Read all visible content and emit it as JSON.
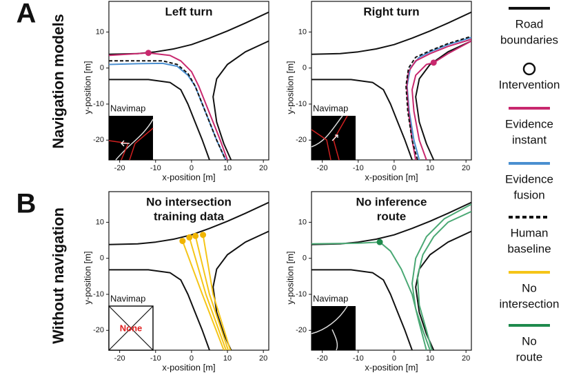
{
  "panel_labels": [
    "A",
    "B"
  ],
  "row_labels": [
    "Navigation models",
    "Without navigation"
  ],
  "legend": [
    {
      "label": [
        "Road",
        "boundaries"
      ],
      "color": "#111111",
      "marker": "line"
    },
    {
      "label": [
        "Intervention"
      ],
      "color": "#111111",
      "marker": "circle"
    },
    {
      "label": [
        "Evidence",
        "instant"
      ],
      "color": "#c8286e",
      "marker": "line"
    },
    {
      "label": [
        "Evidence",
        "fusion"
      ],
      "color": "#4a8fd0",
      "marker": "line"
    },
    {
      "label": [
        "Human",
        "baseline"
      ],
      "color": "#111111",
      "marker": "dashed"
    },
    {
      "label": [
        "No",
        "intersection"
      ],
      "color": "#f5c518",
      "marker": "line"
    },
    {
      "label": [
        "No",
        "route"
      ],
      "color": "#1e8a4c",
      "marker": "line"
    }
  ],
  "chart_data": [
    {
      "type": "line",
      "title": [
        "Left turn"
      ],
      "x_label": "x-position  [m]",
      "y_label": "y-position  [m]",
      "inset_label": "Navimap",
      "xlim": [
        -23,
        21.5
      ],
      "ylim": [
        -25.5,
        18.5
      ],
      "xticks": [
        -20,
        -10,
        0,
        10,
        20
      ],
      "yticks": [
        10,
        0,
        -10,
        -20
      ],
      "series": [
        {
          "name": "Road boundaries",
          "color": "#111111",
          "x": [
            -23,
            -15,
            -10,
            -5,
            0,
            5,
            10,
            15,
            21.5
          ],
          "values": [
            3.8,
            4,
            4.5,
            5.3,
            6.5,
            8.3,
            10.3,
            12.5,
            15.5
          ]
        },
        {
          "name": "Road boundaries",
          "color": "#111111",
          "x": [
            21.5,
            15,
            10,
            7,
            6,
            7,
            9,
            11
          ],
          "values": [
            7.5,
            4.5,
            1,
            -3,
            -8,
            -15,
            -21,
            -25.5
          ]
        },
        {
          "name": "Road boundaries",
          "color": "#111111",
          "x": [
            -23,
            -12,
            -6,
            -3,
            -1,
            1,
            3,
            5
          ],
          "values": [
            -3.2,
            -3.2,
            -4,
            -6,
            -10,
            -15,
            -20,
            -25.5
          ]
        },
        {
          "name": "Evidence fusion",
          "color": "#4a8fd0",
          "x": [
            -23,
            -15,
            -8,
            -4,
            -1,
            1,
            3,
            5,
            7,
            9.5
          ],
          "values": [
            1,
            1.2,
            1.3,
            0.5,
            -2,
            -5,
            -10,
            -15,
            -20,
            -25.5
          ]
        },
        {
          "name": "Evidence instant",
          "color": "#c8286e",
          "x": [
            -23,
            -12,
            -6,
            -3,
            0,
            2,
            4,
            6,
            8,
            10
          ],
          "values": [
            3.5,
            4.2,
            3.5,
            2,
            -1,
            -5,
            -10,
            -15,
            -20,
            -25.5
          ]
        },
        {
          "name": "Human baseline",
          "color": "#111111",
          "style": "dashed",
          "x": [
            -23,
            -15,
            -8,
            -4,
            -1,
            1,
            3,
            5,
            7,
            9.5
          ],
          "values": [
            2,
            2,
            2,
            1,
            -1.5,
            -5,
            -10,
            -15,
            -20,
            -25.5
          ]
        }
      ],
      "points": {
        "name": "Intervention",
        "color": "#c8286e",
        "x": [
          -12
        ],
        "values": [
          4.2
        ]
      }
    },
    {
      "type": "line",
      "title": [
        "Right turn"
      ],
      "x_label": "x-position  [m]",
      "y_label": "y-position  [m]",
      "inset_label": "Navimap",
      "xlim": [
        -23,
        21.5
      ],
      "ylim": [
        -25.5,
        18.5
      ],
      "xticks": [
        -20,
        -10,
        0,
        10,
        20
      ],
      "yticks": [
        10,
        0,
        -10,
        -20
      ],
      "series": [
        {
          "name": "Road boundaries",
          "color": "#111111",
          "x": [
            -23,
            -15,
            -10,
            -5,
            0,
            5,
            10,
            15,
            21.5
          ],
          "values": [
            3.8,
            4,
            4.5,
            5.3,
            6.5,
            8.3,
            10.3,
            12.5,
            15.5
          ]
        },
        {
          "name": "Road boundaries",
          "color": "#111111",
          "x": [
            21.5,
            15,
            10,
            7,
            6,
            7,
            9,
            11
          ],
          "values": [
            7.5,
            4.5,
            1,
            -3,
            -8,
            -15,
            -21,
            -25.5
          ]
        },
        {
          "name": "Road boundaries",
          "color": "#111111",
          "x": [
            -23,
            -12,
            -6,
            -3,
            -1,
            1,
            3,
            5
          ],
          "values": [
            -3.2,
            -3.2,
            -4,
            -6,
            -10,
            -15,
            -20,
            -25.5
          ]
        },
        {
          "name": "Evidence fusion",
          "color": "#4a8fd0",
          "x": [
            7,
            5.5,
            4.2,
            3.6,
            4.5,
            7,
            10,
            15,
            21.5
          ],
          "values": [
            -25.5,
            -20,
            -12,
            -5,
            0,
            3,
            4.5,
            6.5,
            8.5
          ]
        },
        {
          "name": "Evidence instant",
          "color": "#c8286e",
          "x": [
            9,
            7,
            5.5,
            5,
            6,
            9,
            11,
            15,
            21.5
          ],
          "values": [
            -25.5,
            -20,
            -12,
            -6,
            -2,
            1,
            1.5,
            4,
            7.5
          ]
        },
        {
          "name": "Evidence instant",
          "color": "#c8286e",
          "x": [
            6,
            5,
            4,
            3.5,
            4,
            6,
            10,
            15,
            21.5
          ],
          "values": [
            -25.5,
            -20,
            -12,
            -5,
            -1,
            2,
            4,
            6,
            8
          ]
        },
        {
          "name": "Human baseline",
          "color": "#111111",
          "style": "dashed",
          "x": [
            6.5,
            5,
            3.8,
            3.3,
            4,
            6,
            10,
            15,
            21.5
          ],
          "values": [
            -25.5,
            -20,
            -12,
            -5,
            0,
            3,
            4.8,
            6.8,
            8.8
          ]
        }
      ],
      "points": {
        "name": "Intervention",
        "color": "#c8286e",
        "x": [
          11
        ],
        "values": [
          1.5
        ]
      }
    },
    {
      "type": "line",
      "title": [
        "No intersection",
        "training data"
      ],
      "x_label": "x-position  [m]",
      "y_label": "y-position  [m]",
      "inset_label": "Navimap",
      "inset_text": "None",
      "xlim": [
        -23,
        21.5
      ],
      "ylim": [
        -25.5,
        18.5
      ],
      "xticks": [
        -20,
        -10,
        0,
        10,
        20
      ],
      "yticks": [
        10,
        0,
        -10,
        -20
      ],
      "series": [
        {
          "name": "Road boundaries",
          "color": "#111111",
          "x": [
            -23,
            -15,
            -10,
            -5,
            0,
            5,
            10,
            15,
            21.5
          ],
          "values": [
            3.8,
            4,
            4.5,
            5.3,
            6.5,
            8.3,
            10.3,
            12.5,
            15.5
          ]
        },
        {
          "name": "Road boundaries",
          "color": "#111111",
          "x": [
            21.5,
            15,
            10,
            7,
            6,
            7,
            9,
            11
          ],
          "values": [
            7.5,
            4.5,
            1,
            -3,
            -8,
            -15,
            -21,
            -25.5
          ]
        },
        {
          "name": "Road boundaries",
          "color": "#111111",
          "x": [
            -23,
            -12,
            -6,
            -3,
            -1,
            1,
            3,
            5
          ],
          "values": [
            -3.2,
            -3.2,
            -4,
            -6,
            -10,
            -15,
            -20,
            -25.5
          ]
        },
        {
          "name": "No intersection",
          "color": "#f5c518",
          "x": [
            -2.5,
            3,
            9
          ],
          "values": [
            4.8,
            -10,
            -25.5
          ]
        },
        {
          "name": "No intersection",
          "color": "#f5c518",
          "x": [
            -0.6,
            4,
            9.6
          ],
          "values": [
            5.8,
            -10,
            -25.5
          ]
        },
        {
          "name": "No intersection",
          "color": "#f5c518",
          "x": [
            1.1,
            5,
            10.2
          ],
          "values": [
            6.2,
            -10,
            -25.5
          ]
        },
        {
          "name": "No intersection",
          "color": "#f5c518",
          "x": [
            3.2,
            6,
            10.8
          ],
          "values": [
            6.5,
            -10,
            -25.5
          ]
        }
      ],
      "points": {
        "name": "Intervention",
        "color": "#f0b400",
        "x": [
          -2.5,
          -0.6,
          1.1,
          3.2
        ],
        "values": [
          4.8,
          5.8,
          6.2,
          6.5
        ]
      }
    },
    {
      "type": "line",
      "title": [
        "No inference",
        "route"
      ],
      "x_label": "x-position  [m]",
      "y_label": "y-position  [m]",
      "inset_label": "Navimap",
      "xlim": [
        -23,
        21.5
      ],
      "ylim": [
        -25.5,
        18.5
      ],
      "xticks": [
        -20,
        -10,
        0,
        10,
        20
      ],
      "yticks": [
        10,
        0,
        -10,
        -20
      ],
      "series": [
        {
          "name": "Road boundaries",
          "color": "#111111",
          "x": [
            -23,
            -15,
            -10,
            -5,
            0,
            5,
            10,
            15,
            21.5
          ],
          "values": [
            3.8,
            4,
            4.5,
            5.3,
            6.5,
            8.3,
            10.3,
            12.5,
            15.5
          ]
        },
        {
          "name": "Road boundaries",
          "color": "#111111",
          "x": [
            21.5,
            15,
            10,
            7,
            6,
            7,
            9,
            11
          ],
          "values": [
            7.5,
            4.5,
            1,
            -3,
            -8,
            -15,
            -21,
            -25.5
          ]
        },
        {
          "name": "Road boundaries",
          "color": "#111111",
          "x": [
            -23,
            -12,
            -6,
            -3,
            -1,
            1,
            3,
            5
          ],
          "values": [
            -3.2,
            -3.2,
            -4,
            -6,
            -10,
            -15,
            -20,
            -25.5
          ]
        },
        {
          "name": "No route",
          "color": "#4aa874",
          "x": [
            -23,
            -10,
            -4,
            -1,
            2,
            5,
            7,
            9
          ],
          "values": [
            4,
            4.2,
            4.5,
            2,
            -3,
            -10,
            -18,
            -25.5
          ]
        },
        {
          "name": "No route",
          "color": "#4aa874",
          "x": [
            21.5,
            14,
            9,
            6,
            5,
            6,
            8,
            10
          ],
          "values": [
            15,
            11,
            6,
            0,
            -7,
            -14,
            -20,
            -25.5
          ]
        },
        {
          "name": "No route",
          "color": "#4aa874",
          "x": [
            21.5,
            15,
            11,
            8,
            6.5,
            7,
            9,
            10.5
          ],
          "values": [
            13,
            10,
            6,
            1,
            -5,
            -13,
            -20,
            -25.5
          ]
        }
      ],
      "points": {
        "name": "Intervention",
        "color": "#1e8a4c",
        "x": [
          -4
        ],
        "values": [
          4.5
        ]
      }
    }
  ]
}
